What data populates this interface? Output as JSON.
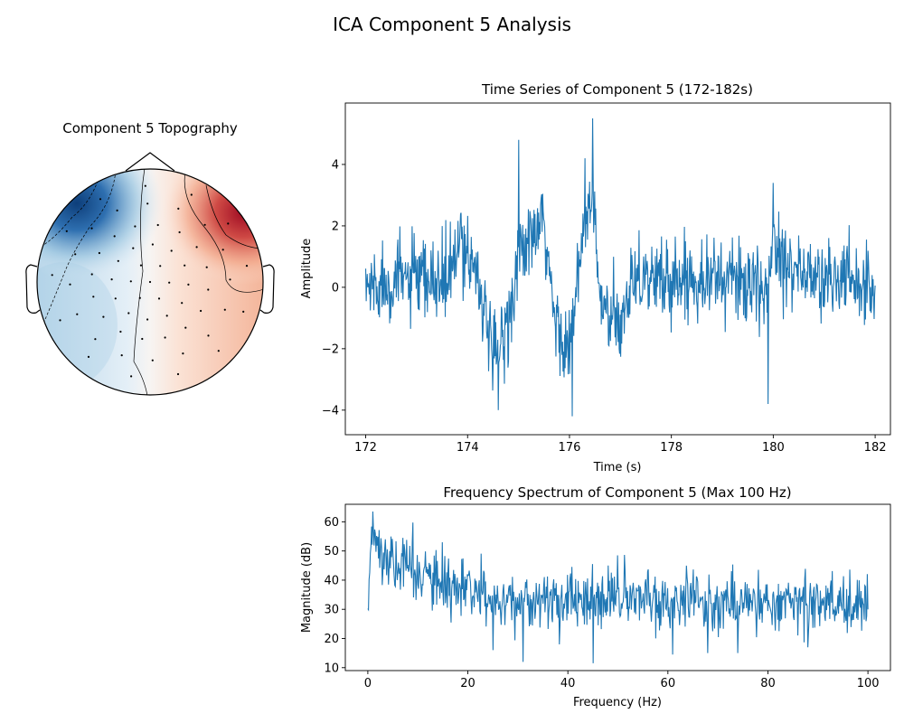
{
  "figure": {
    "title": "ICA Component 5 Analysis"
  },
  "chart_data": [
    {
      "type": "heatmap",
      "title": "Component 5 Topography",
      "colormap": "RdBu_r",
      "sensor_count": 64
    },
    {
      "type": "line",
      "title": "Time Series of Component 5 (172-182s)",
      "xlabel": "Time (s)",
      "ylabel": "Amplitude",
      "xlim": [
        171.6,
        182.3
      ],
      "ylim": [
        -4.8,
        6.0
      ],
      "xticks": [
        172,
        174,
        176,
        178,
        180,
        182
      ],
      "yticks": [
        -4,
        -2,
        0,
        2,
        4
      ],
      "line_color": "#1f77b4",
      "series": [
        {
          "x": [
            172.0,
            172.4,
            172.8,
            173.2,
            173.6,
            173.9,
            174.0,
            174.2,
            174.5,
            174.8,
            175.0,
            175.1,
            175.5,
            175.7,
            176.0,
            176.3,
            176.45,
            176.6,
            176.8,
            177.0,
            177.2,
            177.5,
            178.0,
            178.5,
            179.0,
            179.5,
            179.8,
            180.0,
            180.5,
            181.0,
            181.5,
            182.0
          ],
          "y": [
            0.0,
            0.2,
            0.3,
            0.1,
            0.2,
            1.5,
            1.2,
            0.5,
            -2.5,
            -1.0,
            1.0,
            1.2,
            2.0,
            -1.0,
            -2.0,
            2.0,
            3.0,
            -0.5,
            -1.0,
            -1.5,
            0.5,
            0.3,
            0.2,
            0.4,
            0.3,
            0.2,
            -0.5,
            1.5,
            0.5,
            0.2,
            0.3,
            0.0
          ],
          "extremes": [
            [
              174.6,
              -4.0
            ],
            [
              175.0,
              4.8
            ],
            [
              176.05,
              -4.2
            ],
            [
              176.3,
              4.2
            ],
            [
              176.45,
              5.5
            ],
            [
              179.9,
              -3.8
            ],
            [
              180.0,
              3.4
            ]
          ]
        }
      ]
    },
    {
      "type": "line",
      "title": "Frequency Spectrum of Component 5 (Max 100 Hz)",
      "xlabel": "Frequency (Hz)",
      "ylabel": "Magnitude (dB)",
      "xlim": [
        -4.5,
        104.5
      ],
      "ylim": [
        9,
        66
      ],
      "xticks": [
        0,
        20,
        40,
        60,
        80,
        100
      ],
      "yticks": [
        10,
        20,
        30,
        40,
        50,
        60
      ],
      "line_color": "#1f77b4",
      "series": [
        {
          "x": [
            0,
            0.5,
            1,
            2,
            4,
            6,
            8,
            10,
            12,
            15,
            18,
            20,
            25,
            30,
            35,
            40,
            45,
            50,
            55,
            60,
            65,
            70,
            75,
            80,
            85,
            90,
            95,
            100
          ],
          "y": [
            27,
            45,
            60,
            52,
            47,
            45,
            45,
            43,
            40,
            38,
            36,
            35,
            34,
            33,
            33,
            33,
            33,
            34,
            33,
            33,
            33,
            32,
            32,
            33,
            33,
            32,
            32,
            32
          ],
          "extremes": [
            [
              1.0,
              63.5
            ],
            [
              25.0,
              16.0
            ],
            [
              31.0,
              12.0
            ],
            [
              45.0,
              11.5
            ],
            [
              50.0,
              48.5
            ],
            [
              61.0,
              14.5
            ],
            [
              68.0,
              15.0
            ],
            [
              74.0,
              15.0
            ],
            [
              88.0,
              17.0
            ]
          ]
        }
      ]
    }
  ]
}
